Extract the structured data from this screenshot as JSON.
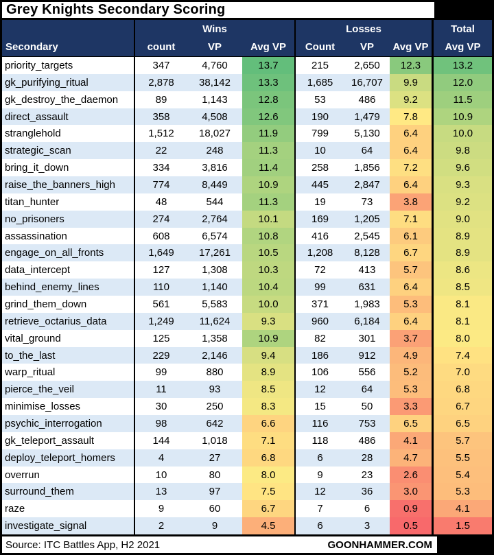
{
  "title": "Grey Knights Secondary Scoring",
  "footer": {
    "source": "Source: ITC Battles App, H2 2021",
    "brand": "GOONHAMMER.COM"
  },
  "colors": {
    "header_bg": "#1E3664",
    "header_text": "#FFFFFF",
    "row_bg": "#FFFFFF",
    "row_alt_bg": "#DCE9F6",
    "border": "#000000",
    "scale_red": "#F8696B",
    "scale_yellow": "#FFEB84",
    "scale_green": "#63BE7B"
  },
  "chart_data": {
    "type": "table",
    "title": "Grey Knights Secondary Scoring",
    "column_groups": [
      "",
      "Wins",
      "Losses",
      "Total"
    ],
    "columns": [
      "Secondary",
      "count",
      "VP",
      "Avg VP",
      "Count",
      "VP",
      "Avg VP",
      "Avg VP"
    ],
    "color_scale": {
      "applies_to": [
        "wins_avg_vp",
        "losses_avg_vp",
        "total_avg_vp"
      ],
      "min_value": 0.5,
      "mid_value": 7.9,
      "max_value": 13.7,
      "min_color": "#F8696B",
      "mid_color": "#FFEB84",
      "max_color": "#63BE7B"
    },
    "rows": [
      [
        "priority_targets",
        "347",
        "4,760",
        13.7,
        "215",
        "2,650",
        12.3,
        13.2
      ],
      [
        "gk_purifying_ritual",
        "2,878",
        "38,142",
        13.3,
        "1,685",
        "16,707",
        9.9,
        12.0
      ],
      [
        "gk_destroy_the_daemon",
        "89",
        "1,143",
        12.8,
        "53",
        "486",
        9.2,
        11.5
      ],
      [
        "direct_assault",
        "358",
        "4,508",
        12.6,
        "190",
        "1,479",
        7.8,
        10.9
      ],
      [
        "stranglehold",
        "1,512",
        "18,027",
        11.9,
        "799",
        "5,130",
        6.4,
        10.0
      ],
      [
        "strategic_scan",
        "22",
        "248",
        11.3,
        "10",
        "64",
        6.4,
        9.8
      ],
      [
        "bring_it_down",
        "334",
        "3,816",
        11.4,
        "258",
        "1,856",
        7.2,
        9.6
      ],
      [
        "raise_the_banners_high",
        "774",
        "8,449",
        10.9,
        "445",
        "2,847",
        6.4,
        9.3
      ],
      [
        "titan_hunter",
        "48",
        "544",
        11.3,
        "19",
        "73",
        3.8,
        9.2
      ],
      [
        "no_prisoners",
        "274",
        "2,764",
        10.1,
        "169",
        "1,205",
        7.1,
        9.0
      ],
      [
        "assassination",
        "608",
        "6,574",
        10.8,
        "416",
        "2,545",
        6.1,
        8.9
      ],
      [
        "engage_on_all_fronts",
        "1,649",
        "17,261",
        10.5,
        "1,208",
        "8,128",
        6.7,
        8.9
      ],
      [
        "data_intercept",
        "127",
        "1,308",
        10.3,
        "72",
        "413",
        5.7,
        8.6
      ],
      [
        "behind_enemy_lines",
        "110",
        "1,140",
        10.4,
        "99",
        "631",
        6.4,
        8.5
      ],
      [
        "grind_them_down",
        "561",
        "5,583",
        10.0,
        "371",
        "1,983",
        5.3,
        8.1
      ],
      [
        "retrieve_octarius_data",
        "1,249",
        "11,624",
        9.3,
        "960",
        "6,184",
        6.4,
        8.1
      ],
      [
        "vital_ground",
        "125",
        "1,358",
        10.9,
        "82",
        "301",
        3.7,
        8.0
      ],
      [
        "to_the_last",
        "229",
        "2,146",
        9.4,
        "186",
        "912",
        4.9,
        7.4
      ],
      [
        "warp_ritual",
        "99",
        "880",
        8.9,
        "106",
        "556",
        5.2,
        7.0
      ],
      [
        "pierce_the_veil",
        "11",
        "93",
        8.5,
        "12",
        "64",
        5.3,
        6.8
      ],
      [
        "minimise_losses",
        "30",
        "250",
        8.3,
        "15",
        "50",
        3.3,
        6.7
      ],
      [
        "psychic_interrogation",
        "98",
        "642",
        6.6,
        "116",
        "753",
        6.5,
        6.5
      ],
      [
        "gk_teleport_assault",
        "144",
        "1,018",
        7.1,
        "118",
        "486",
        4.1,
        5.7
      ],
      [
        "deploy_teleport_homers",
        "4",
        "27",
        6.8,
        "6",
        "28",
        4.7,
        5.5
      ],
      [
        "overrun",
        "10",
        "80",
        8.0,
        "9",
        "23",
        2.6,
        5.4
      ],
      [
        "surround_them",
        "13",
        "97",
        7.5,
        "12",
        "36",
        3.0,
        5.3
      ],
      [
        "raze",
        "9",
        "60",
        6.7,
        "7",
        "6",
        0.9,
        4.1
      ],
      [
        "investigate_signal",
        "2",
        "9",
        4.5,
        "6",
        "3",
        0.5,
        1.5
      ]
    ]
  }
}
